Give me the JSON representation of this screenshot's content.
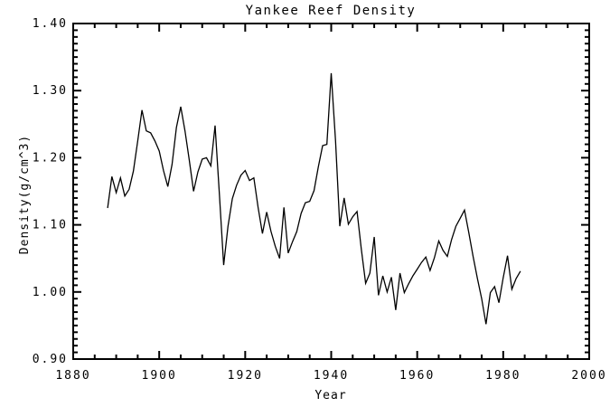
{
  "window": {
    "background": "#ffffff",
    "foreground": "#000000"
  },
  "chart_data": {
    "type": "line",
    "title": "Yankee Reef Density",
    "xlabel": "Year",
    "ylabel": "Density(g/cm^3)",
    "xlim": [
      1880,
      2000
    ],
    "ylim": [
      0.9,
      1.4
    ],
    "grid": false,
    "legend": "none",
    "line_color": "#000000",
    "xticks": {
      "values": [
        1880,
        1900,
        1920,
        1940,
        1960,
        1980,
        2000
      ],
      "labels": [
        "1880",
        "1900",
        "1920",
        "1940",
        "1960",
        "1980",
        "2000"
      ],
      "minor_step": 5
    },
    "yticks": {
      "values": [
        0.9,
        1.0,
        1.1,
        1.2,
        1.3,
        1.4
      ],
      "labels": [
        "0.90",
        "1.00",
        "1.10",
        "1.20",
        "1.30",
        "1.40"
      ],
      "minor_step": 0.01
    },
    "series": [
      {
        "name": "density",
        "x_start": 1888,
        "x_step": 1,
        "values": [
          1.125,
          1.172,
          1.148,
          1.17,
          1.143,
          1.153,
          1.18,
          1.225,
          1.271,
          1.24,
          1.237,
          1.225,
          1.21,
          1.181,
          1.157,
          1.19,
          1.245,
          1.276,
          1.24,
          1.196,
          1.15,
          1.179,
          1.198,
          1.2,
          1.188,
          1.248,
          1.145,
          1.04,
          1.098,
          1.139,
          1.159,
          1.174,
          1.181,
          1.166,
          1.17,
          1.126,
          1.087,
          1.119,
          1.09,
          1.068,
          1.05,
          1.126,
          1.058,
          1.075,
          1.09,
          1.117,
          1.133,
          1.135,
          1.151,
          1.186,
          1.218,
          1.22,
          1.326,
          1.225,
          1.098,
          1.14,
          1.101,
          1.112,
          1.12,
          1.064,
          1.013,
          1.028,
          1.082,
          0.995,
          1.024,
          1.0,
          1.022,
          0.973,
          1.028,
          0.999,
          1.012,
          1.024,
          1.034,
          1.044,
          1.052,
          1.032,
          1.051,
          1.076,
          1.062,
          1.053,
          1.078,
          1.098,
          1.11,
          1.122,
          1.088,
          1.053,
          1.02,
          0.99,
          0.952,
          0.999,
          1.008,
          0.984,
          1.021,
          1.054,
          1.004,
          1.02,
          1.031
        ]
      }
    ]
  }
}
